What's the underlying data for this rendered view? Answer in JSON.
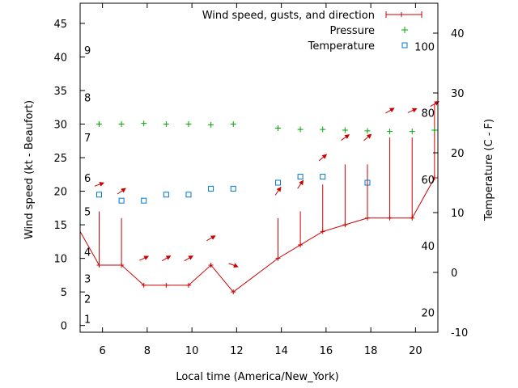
{
  "chart_data": {
    "type": "line",
    "xlabel": "Local time (America/New_York)",
    "ylabel_left": "Wind speed (kt - Beaufort)",
    "ylabel_right": "Temperature (C - F)",
    "xlim": [
      5,
      21
    ],
    "ylim_left": [
      -1,
      48
    ],
    "ylim_right": [
      -10,
      45
    ],
    "x_ticks": [
      6,
      8,
      10,
      12,
      14,
      16,
      18,
      20
    ],
    "y_left_ticks": [
      0,
      5,
      10,
      15,
      20,
      25,
      30,
      35,
      40,
      45
    ],
    "y_right_ticks": [
      -10,
      0,
      10,
      20,
      30,
      40
    ],
    "beaufort_labels": [
      {
        "label": "1",
        "kt": 1
      },
      {
        "label": "2",
        "kt": 4
      },
      {
        "label": "3",
        "kt": 7
      },
      {
        "label": "4",
        "kt": 11
      },
      {
        "label": "5",
        "kt": 17
      },
      {
        "label": "6",
        "kt": 22
      },
      {
        "label": "7",
        "kt": 28
      },
      {
        "label": "8",
        "kt": 34
      },
      {
        "label": "9",
        "kt": 41
      }
    ],
    "fahrenheit_labels": [
      {
        "label": "20",
        "c": -6.67
      },
      {
        "label": "40",
        "c": 4.44
      },
      {
        "label": "60",
        "c": 15.56
      },
      {
        "label": "80",
        "c": 26.67
      },
      {
        "label": "100",
        "c": 37.78
      }
    ],
    "legend": {
      "position": "top-right",
      "entries": [
        "Wind speed, gusts, and direction",
        "Pressure",
        "Temperature"
      ]
    },
    "colors": {
      "wind": "#cc0000",
      "pressure": "#00aa00",
      "temperature": "#0077cc",
      "axis": "#000000"
    },
    "series": [
      {
        "name": "Wind speed, gusts, and direction",
        "x": [
          5,
          5.85,
          6.85,
          7.85,
          8.85,
          9.85,
          10.85,
          11.85,
          13.85,
          14.85,
          15.85,
          16.85,
          17.85,
          18.85,
          19.85,
          20.85,
          21
        ],
        "values": [
          14,
          9,
          9,
          6,
          6,
          6,
          9,
          5,
          10,
          12,
          14,
          15,
          16,
          16,
          16,
          22,
          22
        ],
        "gusts": [
          null,
          17,
          16,
          null,
          null,
          null,
          null,
          null,
          16,
          17,
          21,
          24,
          24,
          28,
          28,
          33,
          null
        ],
        "direction_arrows": [
          {
            "x": 5.85,
            "kt": 21,
            "angle_deg": -20
          },
          {
            "x": 6.85,
            "kt": 20,
            "angle_deg": -35
          },
          {
            "x": 7.85,
            "kt": 10,
            "angle_deg": -25
          },
          {
            "x": 8.85,
            "kt": 10,
            "angle_deg": -30
          },
          {
            "x": 9.85,
            "kt": 10,
            "angle_deg": -30
          },
          {
            "x": 10.85,
            "kt": 13,
            "angle_deg": -30
          },
          {
            "x": 11.85,
            "kt": 9,
            "angle_deg": 20
          },
          {
            "x": 13.85,
            "kt": 20,
            "angle_deg": -55
          },
          {
            "x": 14.85,
            "kt": 21,
            "angle_deg": -55
          },
          {
            "x": 15.85,
            "kt": 25,
            "angle_deg": -40
          },
          {
            "x": 16.85,
            "kt": 28,
            "angle_deg": -35
          },
          {
            "x": 17.85,
            "kt": 28,
            "angle_deg": -40
          },
          {
            "x": 18.85,
            "kt": 32,
            "angle_deg": -30
          },
          {
            "x": 19.85,
            "kt": 32,
            "angle_deg": -25
          },
          {
            "x": 20.85,
            "kt": 33,
            "angle_deg": -30
          }
        ]
      },
      {
        "name": "Pressure",
        "x": [
          5.85,
          6.85,
          7.85,
          8.85,
          9.85,
          10.85,
          11.85,
          13.85,
          14.85,
          15.85,
          16.85,
          17.85,
          18.85,
          19.85,
          20.85
        ],
        "values": [
          30,
          30,
          30.1,
          30,
          30,
          29.9,
          30,
          29.4,
          29.2,
          29.2,
          29.1,
          29,
          28.9,
          28.9,
          29.1
        ]
      },
      {
        "name": "Temperature",
        "x": [
          5.85,
          6.85,
          7.85,
          8.85,
          9.85,
          10.85,
          11.85,
          13.85,
          14.85,
          15.85,
          17.85
        ],
        "values": [
          13,
          12,
          12,
          13,
          13,
          14,
          14,
          15,
          16,
          16,
          15
        ]
      }
    ]
  }
}
